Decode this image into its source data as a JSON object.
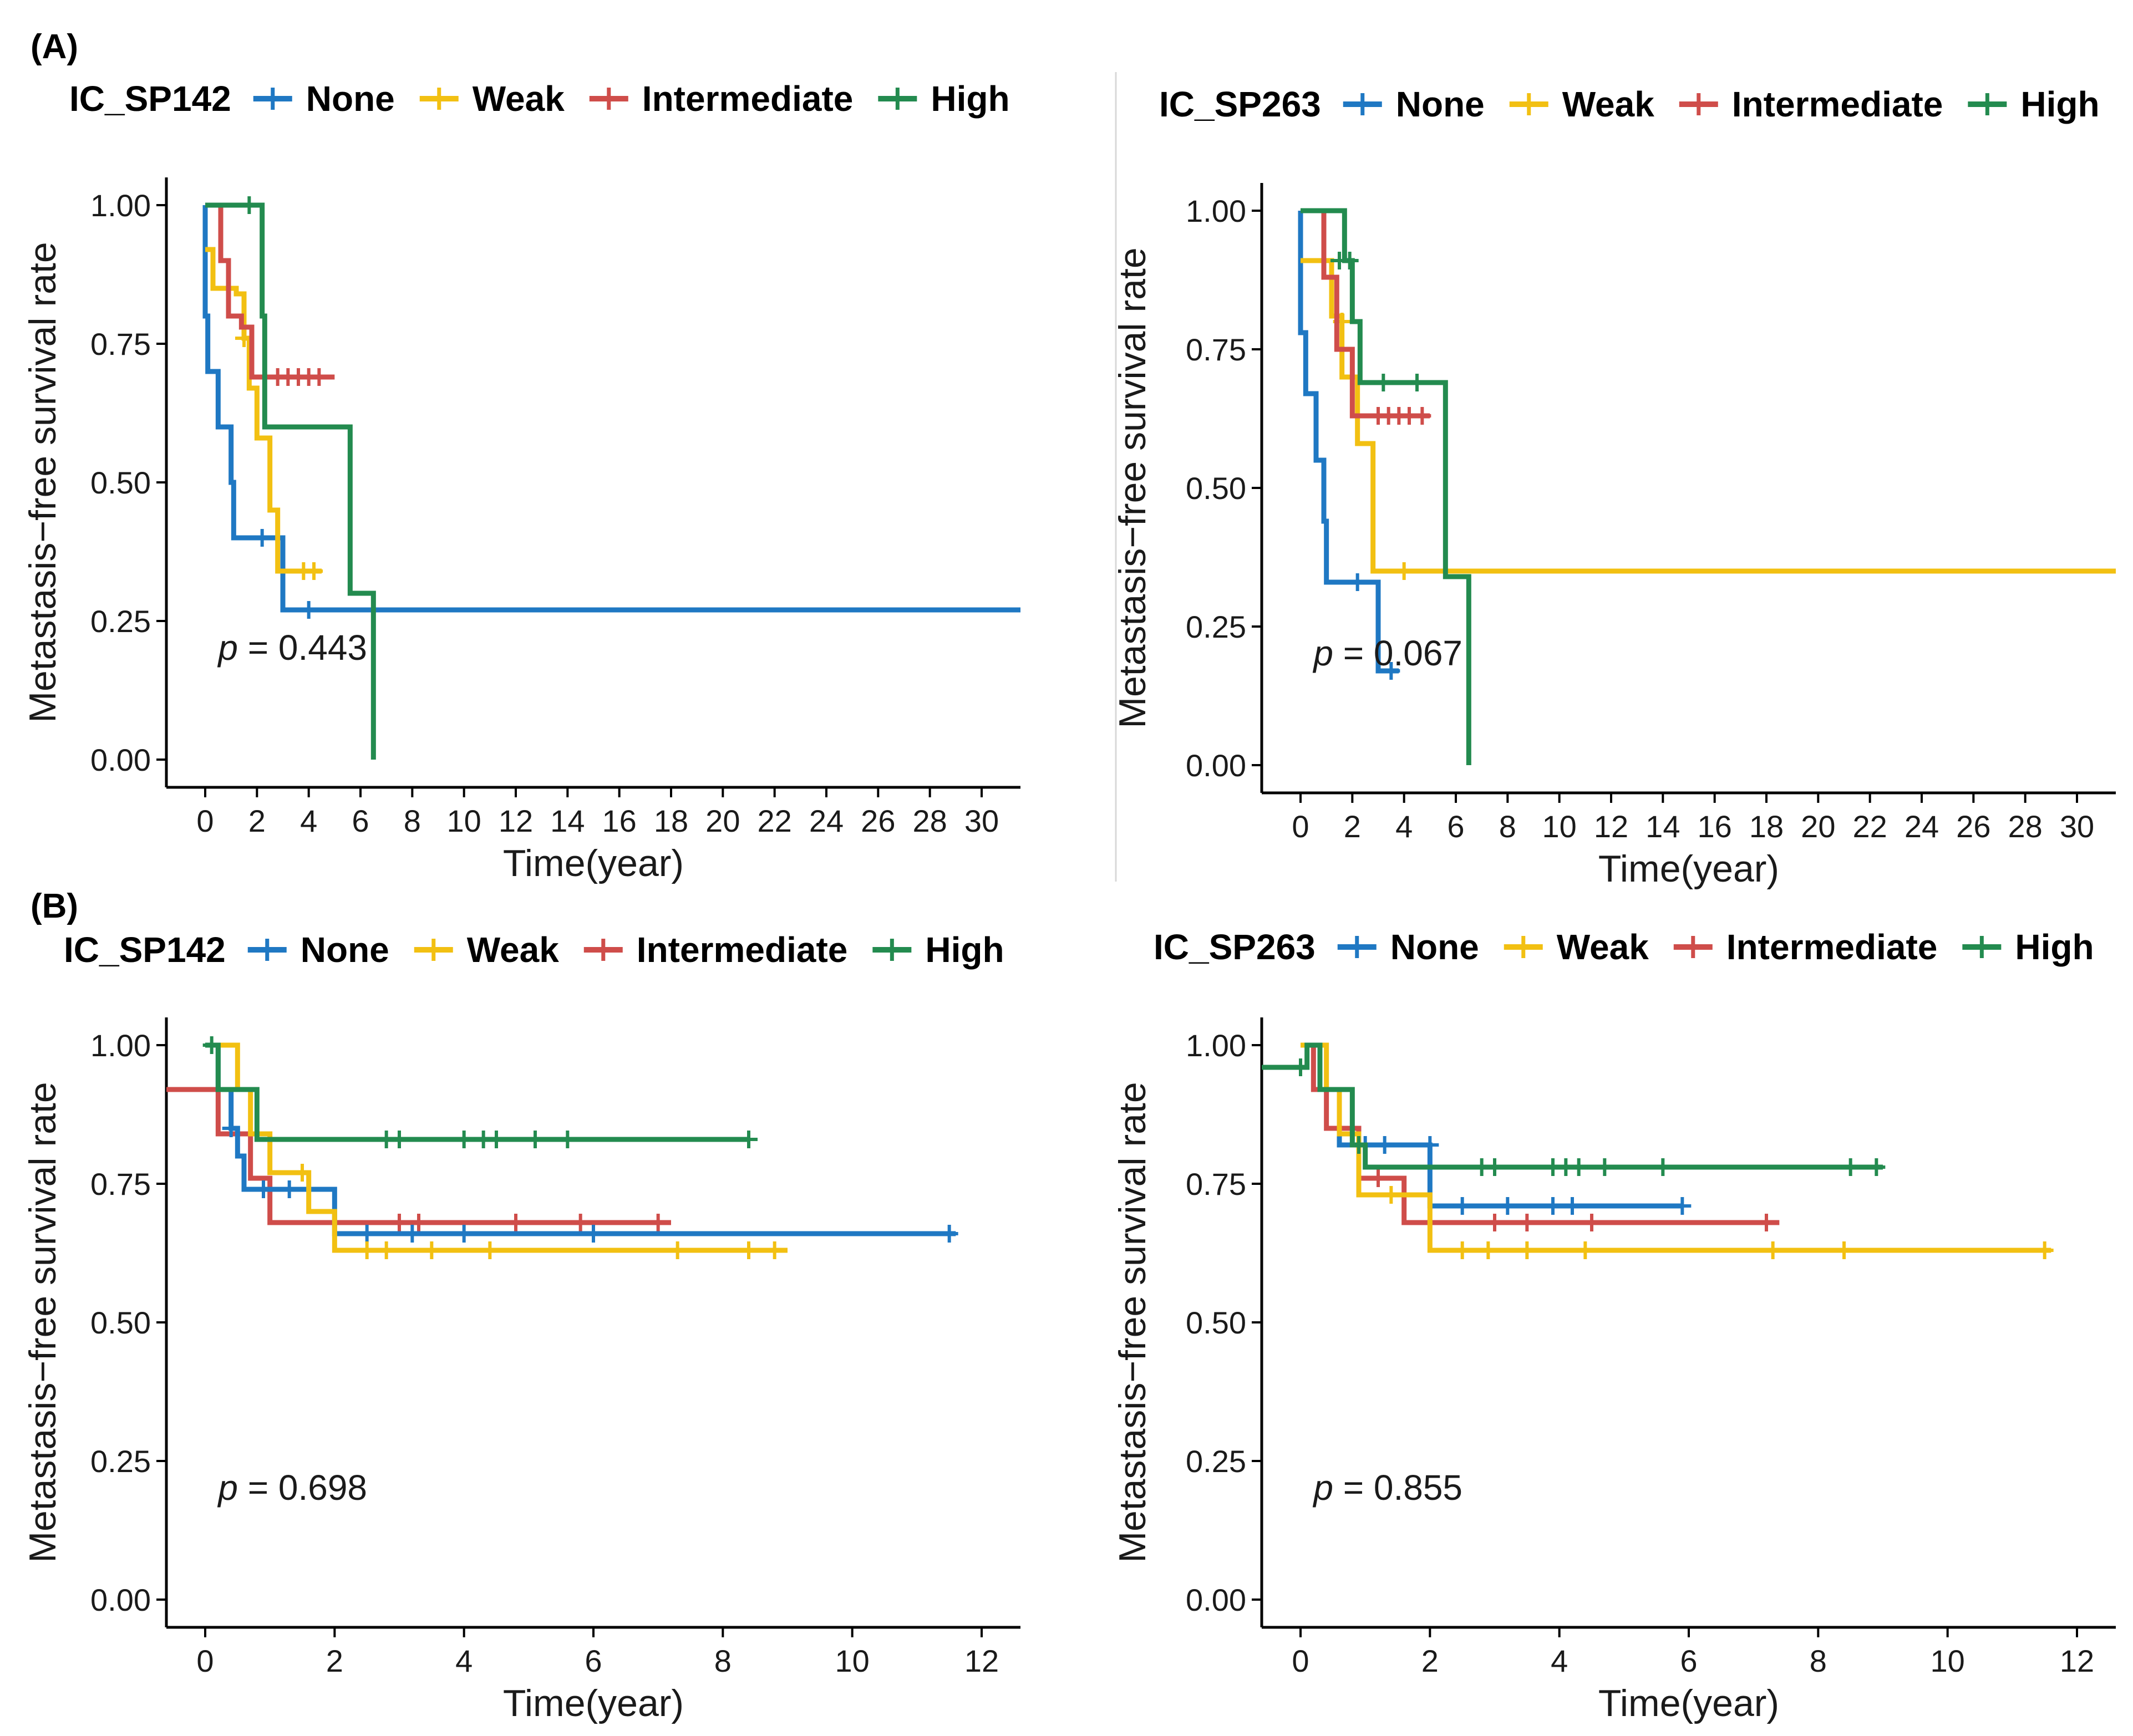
{
  "panel_labels": {
    "a": "(A)",
    "b": "(B)"
  },
  "chart_data": [
    {
      "type": "line",
      "panel": "A",
      "legend_title": "IC_SP142",
      "legend_labels": [
        "None",
        "Weak",
        "Intermediate",
        "High"
      ],
      "colors": [
        "#1f78c3",
        "#f2c012",
        "#cf4d4a",
        "#238b4f"
      ],
      "xlabel": "Time(year)",
      "ylabel": "Metastasis−free survival rate",
      "xlim": [
        -1.5,
        31.5
      ],
      "ylim": [
        -0.05,
        1.05
      ],
      "xticks": [
        0,
        2,
        4,
        6,
        8,
        10,
        12,
        14,
        16,
        18,
        20,
        22,
        24,
        26,
        28,
        30
      ],
      "xtick_labels": [
        "0",
        "2",
        "4",
        "6",
        "8",
        "10",
        "12",
        "14",
        "16",
        "18",
        "20",
        "22",
        "24",
        "26",
        "28",
        "30"
      ],
      "yticks": [
        0,
        0.25,
        0.5,
        0.75,
        1
      ],
      "ytick_labels": [
        "0.00",
        "0.25",
        "0.50",
        "0.75",
        "1.00"
      ],
      "pvalue": {
        "p": "p",
        "text": "= 0.443",
        "x": 0.5,
        "y": 0.2
      },
      "series": [
        {
          "name": "None",
          "steps": [
            [
              0,
              1
            ],
            [
              0,
              0.8
            ],
            [
              0.1,
              0.7
            ],
            [
              0.5,
              0.6
            ],
            [
              1,
              0.5
            ],
            [
              1.1,
              0.4
            ],
            [
              2,
              0.4
            ],
            [
              3,
              0.27
            ],
            [
              31.5,
              0.27
            ]
          ],
          "censored": [
            [
              2.2,
              0.4
            ],
            [
              4,
              0.27
            ]
          ]
        },
        {
          "name": "Weak",
          "steps": [
            [
              0,
              0.92
            ],
            [
              0.1,
              0.92
            ],
            [
              0.3,
              0.85
            ],
            [
              1.2,
              0.84
            ],
            [
              1.5,
              0.76
            ],
            [
              1.7,
              0.67
            ],
            [
              2,
              0.58
            ],
            [
              2.5,
              0.45
            ],
            [
              2.8,
              0.34
            ],
            [
              4.5,
              0.34
            ]
          ],
          "censored": [
            [
              1.5,
              0.76
            ],
            [
              3.8,
              0.34
            ],
            [
              4.2,
              0.34
            ]
          ]
        },
        {
          "name": "Intermediate",
          "steps": [
            [
              0,
              1
            ],
            [
              0.6,
              0.9
            ],
            [
              0.9,
              0.8
            ],
            [
              1.4,
              0.78
            ],
            [
              1.8,
              0.69
            ],
            [
              5,
              0.69
            ]
          ],
          "censored": [
            [
              2.8,
              0.69
            ],
            [
              3.2,
              0.69
            ],
            [
              3.6,
              0.69
            ],
            [
              4.0,
              0.69
            ],
            [
              4.4,
              0.69
            ]
          ]
        },
        {
          "name": "High",
          "steps": [
            [
              0,
              1
            ],
            [
              2.2,
              0.8
            ],
            [
              2.3,
              0.6
            ],
            [
              5.6,
              0.3
            ],
            [
              6.5,
              0
            ]
          ],
          "censored": [
            [
              1.7,
              1
            ]
          ]
        }
      ]
    },
    {
      "type": "line",
      "panel": "A",
      "legend_title": "IC_SP263",
      "legend_labels": [
        "None",
        "Weak",
        "Intermediate",
        "High"
      ],
      "colors": [
        "#1f78c3",
        "#f2c012",
        "#cf4d4a",
        "#238b4f"
      ],
      "xlabel": "Time(year)",
      "ylabel": "Metastasis−free survival rate",
      "xlim": [
        -1.5,
        31.5
      ],
      "ylim": [
        -0.05,
        1.05
      ],
      "xticks": [
        0,
        2,
        4,
        6,
        8,
        10,
        12,
        14,
        16,
        18,
        20,
        22,
        24,
        26,
        28,
        30
      ],
      "xtick_labels": [
        "0",
        "2",
        "4",
        "6",
        "8",
        "10",
        "12",
        "14",
        "16",
        "18",
        "20",
        "22",
        "24",
        "26",
        "28",
        "30"
      ],
      "yticks": [
        0,
        0.25,
        0.5,
        0.75,
        1
      ],
      "ytick_labels": [
        "0.00",
        "0.25",
        "0.50",
        "0.75",
        "1.00"
      ],
      "pvalue": {
        "p": "p",
        "text": "= 0.067",
        "x": 0.5,
        "y": 0.2
      },
      "series": [
        {
          "name": "None",
          "steps": [
            [
              0,
              1
            ],
            [
              0,
              0.78
            ],
            [
              0.2,
              0.67
            ],
            [
              0.6,
              0.55
            ],
            [
              0.9,
              0.44
            ],
            [
              1,
              0.33
            ],
            [
              3,
              0.17
            ],
            [
              3.8,
              0.17
            ]
          ],
          "censored": [
            [
              2.2,
              0.33
            ],
            [
              3.5,
              0.17
            ]
          ]
        },
        {
          "name": "Weak",
          "steps": [
            [
              0,
              0.91
            ],
            [
              0.1,
              0.91
            ],
            [
              1.2,
              0.81
            ],
            [
              1.6,
              0.7
            ],
            [
              2.2,
              0.58
            ],
            [
              2.8,
              0.35
            ],
            [
              31.5,
              0.35
            ]
          ],
          "censored": [
            [
              1.6,
              0.8
            ],
            [
              4.0,
              0.35
            ]
          ]
        },
        {
          "name": "Intermediate",
          "steps": [
            [
              0,
              1
            ],
            [
              0.9,
              0.88
            ],
            [
              1.4,
              0.75
            ],
            [
              2.0,
              0.63
            ],
            [
              5,
              0.63
            ]
          ],
          "censored": [
            [
              3.0,
              0.63
            ],
            [
              3.4,
              0.63
            ],
            [
              3.8,
              0.63
            ],
            [
              4.2,
              0.63
            ],
            [
              4.7,
              0.63
            ]
          ]
        },
        {
          "name": "High",
          "steps": [
            [
              0,
              1
            ],
            [
              1.7,
              0.91
            ],
            [
              2.0,
              0.8
            ],
            [
              2.3,
              0.69
            ],
            [
              5.6,
              0.34
            ],
            [
              6.5,
              0
            ]
          ],
          "censored": [
            [
              1.5,
              0.91
            ],
            [
              1.9,
              0.91
            ],
            [
              3.2,
              0.69
            ],
            [
              4.5,
              0.69
            ]
          ]
        }
      ]
    },
    {
      "type": "line",
      "panel": "B",
      "legend_title": "IC_SP142",
      "legend_labels": [
        "None",
        "Weak",
        "Intermediate",
        "High"
      ],
      "colors": [
        "#1f78c3",
        "#f2c012",
        "#cf4d4a",
        "#238b4f"
      ],
      "xlabel": "Time(year)",
      "ylabel": "Metastasis−free survival rate",
      "xlim": [
        -0.6,
        12.6
      ],
      "ylim": [
        -0.05,
        1.05
      ],
      "xticks": [
        0,
        2,
        4,
        6,
        8,
        10,
        12
      ],
      "xtick_labels": [
        "0",
        "2",
        "4",
        "6",
        "8",
        "10",
        "12"
      ],
      "yticks": [
        0,
        0.25,
        0.5,
        0.75,
        1
      ],
      "ytick_labels": [
        "0.00",
        "0.25",
        "0.50",
        "0.75",
        "1.00"
      ],
      "pvalue": {
        "p": "p",
        "text": "= 0.698",
        "x": 0.2,
        "y": 0.2
      },
      "series": [
        {
          "name": "Intermediate",
          "steps": [
            [
              -0.6,
              0.92
            ],
            [
              0,
              0.92
            ],
            [
              0.2,
              0.84
            ],
            [
              0.7,
              0.76
            ],
            [
              1.0,
              0.68
            ],
            [
              7.2,
              0.68
            ]
          ],
          "censored": [
            [
              3.0,
              0.68
            ],
            [
              3.3,
              0.68
            ],
            [
              4.8,
              0.68
            ],
            [
              5.8,
              0.68
            ],
            [
              7.0,
              0.68
            ]
          ]
        },
        {
          "name": "None",
          "steps": [
            [
              0,
              1
            ],
            [
              0.2,
              0.92
            ],
            [
              0.4,
              0.85
            ],
            [
              0.5,
              0.8
            ],
            [
              0.6,
              0.74
            ],
            [
              2,
              0.74
            ],
            [
              2,
              0.66
            ],
            [
              11.6,
              0.66
            ]
          ],
          "censored": [
            [
              0.4,
              0.85
            ],
            [
              0.9,
              0.74
            ],
            [
              1.3,
              0.74
            ],
            [
              1.6,
              0.74
            ],
            [
              2.5,
              0.66
            ],
            [
              3.2,
              0.66
            ],
            [
              4.0,
              0.66
            ],
            [
              6.0,
              0.66
            ],
            [
              11.5,
              0.66
            ]
          ]
        },
        {
          "name": "Weak",
          "steps": [
            [
              0,
              1
            ],
            [
              0.5,
              0.92
            ],
            [
              0.7,
              0.84
            ],
            [
              1.0,
              0.77
            ],
            [
              1.6,
              0.7
            ],
            [
              2,
              0.63
            ],
            [
              9,
              0.63
            ]
          ],
          "censored": [
            [
              1.5,
              0.77
            ],
            [
              2.5,
              0.63
            ],
            [
              2.8,
              0.63
            ],
            [
              3.5,
              0.63
            ],
            [
              4.4,
              0.63
            ],
            [
              7.3,
              0.63
            ],
            [
              8.4,
              0.63
            ],
            [
              8.8,
              0.63
            ]
          ]
        },
        {
          "name": "High",
          "steps": [
            [
              0,
              1
            ],
            [
              0.2,
              0.92
            ],
            [
              0.8,
              0.83
            ],
            [
              8.4,
              0.83
            ]
          ],
          "censored": [
            [
              0.1,
              1
            ],
            [
              2.8,
              0.83
            ],
            [
              3.0,
              0.83
            ],
            [
              4.0,
              0.83
            ],
            [
              4.3,
              0.83
            ],
            [
              4.5,
              0.83
            ],
            [
              5.1,
              0.83
            ],
            [
              5.6,
              0.83
            ],
            [
              8.4,
              0.83
            ]
          ]
        }
      ]
    },
    {
      "type": "line",
      "panel": "B",
      "legend_title": "IC_SP263",
      "legend_labels": [
        "None",
        "Weak",
        "Intermediate",
        "High"
      ],
      "colors": [
        "#1f78c3",
        "#f2c012",
        "#cf4d4a",
        "#238b4f"
      ],
      "xlabel": "Time(year)",
      "ylabel": "Metastasis−free survival rate",
      "xlim": [
        -0.6,
        12.6
      ],
      "ylim": [
        -0.05,
        1.05
      ],
      "xticks": [
        0,
        2,
        4,
        6,
        8,
        10,
        12
      ],
      "xtick_labels": [
        "0",
        "2",
        "4",
        "6",
        "8",
        "10",
        "12"
      ],
      "yticks": [
        0,
        0.25,
        0.5,
        0.75,
        1
      ],
      "ytick_labels": [
        "0.00",
        "0.25",
        "0.50",
        "0.75",
        "1.00"
      ],
      "pvalue": {
        "p": "p",
        "text": "= 0.855",
        "x": 0.2,
        "y": 0.2
      },
      "series": [
        {
          "name": "Intermediate",
          "steps": [
            [
              0,
              1
            ],
            [
              0.2,
              0.92
            ],
            [
              0.4,
              0.85
            ],
            [
              0.9,
              0.76
            ],
            [
              1.6,
              0.68
            ],
            [
              7.4,
              0.68
            ]
          ],
          "censored": [
            [
              1.2,
              0.76
            ],
            [
              3.0,
              0.68
            ],
            [
              3.5,
              0.68
            ],
            [
              4.5,
              0.68
            ],
            [
              7.2,
              0.68
            ]
          ]
        },
        {
          "name": "None",
          "steps": [
            [
              0,
              1
            ],
            [
              0.3,
              0.92
            ],
            [
              0.6,
              0.82
            ],
            [
              2,
              0.71
            ],
            [
              5.9,
              0.71
            ]
          ],
          "censored": [
            [
              1.0,
              0.82
            ],
            [
              1.3,
              0.82
            ],
            [
              2.0,
              0.82
            ],
            [
              2.5,
              0.71
            ],
            [
              3.2,
              0.71
            ],
            [
              3.9,
              0.71
            ],
            [
              4.2,
              0.71
            ],
            [
              5.9,
              0.71
            ]
          ]
        },
        {
          "name": "Weak",
          "steps": [
            [
              0,
              1
            ],
            [
              0.4,
              0.92
            ],
            [
              0.6,
              0.84
            ],
            [
              0.9,
              0.73
            ],
            [
              2,
              0.63
            ],
            [
              11.6,
              0.63
            ]
          ],
          "censored": [
            [
              0.8,
              0.84
            ],
            [
              1.4,
              0.73
            ],
            [
              2.5,
              0.63
            ],
            [
              2.9,
              0.63
            ],
            [
              3.5,
              0.63
            ],
            [
              4.4,
              0.63
            ],
            [
              7.3,
              0.63
            ],
            [
              8.4,
              0.63
            ],
            [
              11.5,
              0.63
            ]
          ]
        },
        {
          "name": "High",
          "steps": [
            [
              -0.6,
              0.96
            ],
            [
              0,
              0.96
            ],
            [
              0.1,
              1
            ],
            [
              0.3,
              0.92
            ],
            [
              0.8,
              0.82
            ],
            [
              1.0,
              0.78
            ],
            [
              9,
              0.78
            ]
          ],
          "censored": [
            [
              0.0,
              0.96
            ],
            [
              0.9,
              0.82
            ],
            [
              2.8,
              0.78
            ],
            [
              3.0,
              0.78
            ],
            [
              3.9,
              0.78
            ],
            [
              4.1,
              0.78
            ],
            [
              4.3,
              0.78
            ],
            [
              4.7,
              0.78
            ],
            [
              5.6,
              0.78
            ],
            [
              8.5,
              0.78
            ],
            [
              8.9,
              0.78
            ]
          ]
        }
      ]
    }
  ]
}
